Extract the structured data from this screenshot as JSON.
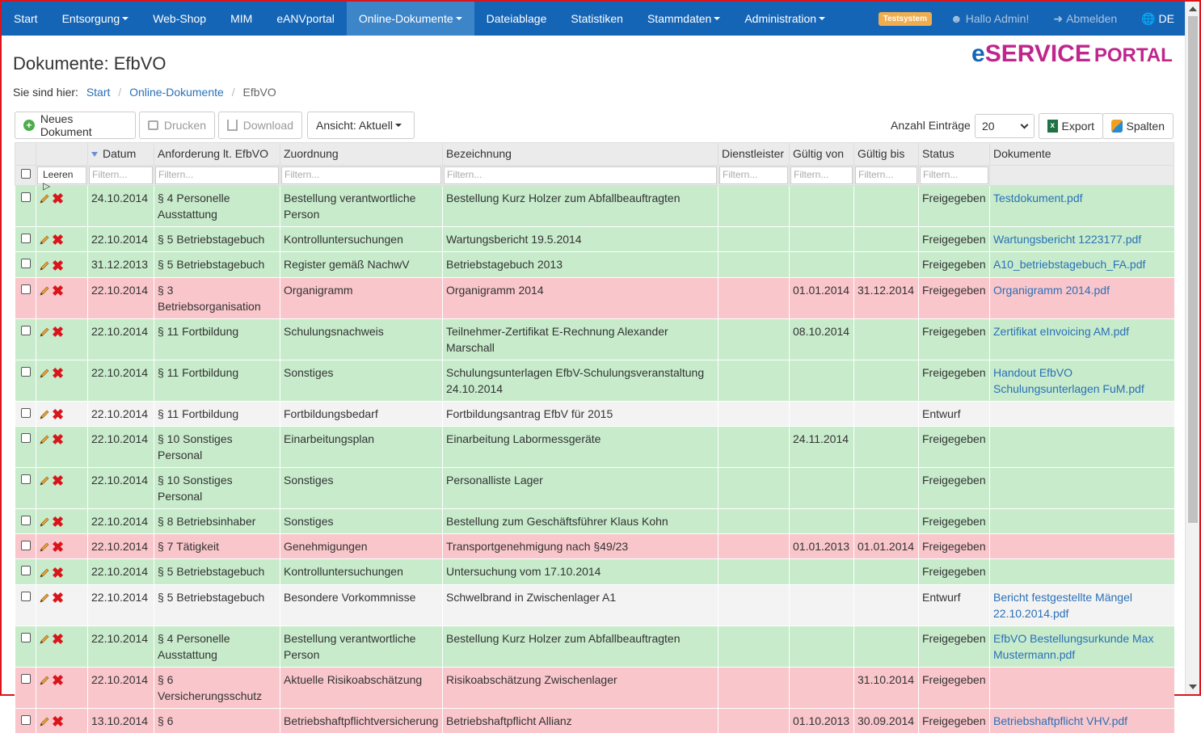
{
  "nav": {
    "items": [
      {
        "label": "Start",
        "dropdown": false,
        "active": false
      },
      {
        "label": "Entsorgung",
        "dropdown": true,
        "active": false
      },
      {
        "label": "Web-Shop",
        "dropdown": false,
        "active": false
      },
      {
        "label": "MIM",
        "dropdown": false,
        "active": false
      },
      {
        "label": "eANVportal",
        "dropdown": false,
        "active": false
      },
      {
        "label": "Online-Dokumente",
        "dropdown": true,
        "active": true
      },
      {
        "label": "Dateiablage",
        "dropdown": false,
        "active": false
      },
      {
        "label": "Statistiken",
        "dropdown": false,
        "active": false
      },
      {
        "label": "Stammdaten",
        "dropdown": true,
        "active": false
      },
      {
        "label": "Administration",
        "dropdown": true,
        "active": false
      }
    ],
    "test_badge": "Testsystem",
    "greeting": "Hallo Admin!",
    "logout": "Abmelden",
    "language": "DE"
  },
  "header": {
    "title": "Dokumente: EfbVO",
    "logo": {
      "e": "e",
      "service": "SERVICE",
      "portal": "PORTAL"
    }
  },
  "breadcrumb": {
    "prefix": "Sie sind hier:",
    "items": [
      "Start",
      "Online-Dokumente"
    ],
    "current": "EfbVO"
  },
  "toolbar": {
    "new_doc": "Neues Dokument",
    "print": "Drucken",
    "download": "Download",
    "view": "Ansicht: Aktuell",
    "count_label": "Anzahl Einträge",
    "count_value": "20",
    "export": "Export",
    "columns": "Spalten"
  },
  "table": {
    "columns": [
      "Datum",
      "Anforderung lt. EfbVO",
      "Zuordnung",
      "Bezeichnung",
      "Dienstleister",
      "Gültig von",
      "Gültig bis",
      "Status",
      "Dokumente"
    ],
    "clear_label": "Leeren",
    "filter_placeholder": "Filtern...",
    "rows": [
      {
        "color": "green",
        "datum": "24.10.2014",
        "anf": "§ 4 Personelle Ausstattung",
        "zuo": "Bestellung verantwortliche Person",
        "bez": "Bestellung Kurz Holzer zum Abfallbeauftragten",
        "dienst": "",
        "von": "",
        "bis": "",
        "status": "Freigegeben",
        "doc": "Testdokument.pdf"
      },
      {
        "color": "green",
        "datum": "22.10.2014",
        "anf": "§ 5 Betriebstagebuch",
        "zuo": "Kontrolluntersuchungen",
        "bez": "Wartungsbericht 19.5.2014",
        "dienst": "",
        "von": "",
        "bis": "",
        "status": "Freigegeben",
        "doc": "Wartungsbericht 1223177.pdf"
      },
      {
        "color": "green",
        "datum": "31.12.2013",
        "anf": "§ 5 Betriebstagebuch",
        "zuo": "Register gemäß NachwV",
        "bez": "Betriebstagebuch 2013",
        "dienst": "",
        "von": "",
        "bis": "",
        "status": "Freigegeben",
        "doc": "A10_betriebstagebuch_FA.pdf"
      },
      {
        "color": "red",
        "datum": "22.10.2014",
        "anf": "§ 3 Betriebsorganisation",
        "zuo": "Organigramm",
        "bez": "Organigramm 2014",
        "dienst": "",
        "von": "01.01.2014",
        "bis": "31.12.2014",
        "status": "Freigegeben",
        "doc": "Organigramm 2014.pdf"
      },
      {
        "color": "green",
        "datum": "22.10.2014",
        "anf": "§ 11 Fortbildung",
        "zuo": "Schulungsnachweis",
        "bez": "Teilnehmer-Zertifikat E-Rechnung Alexander Marschall",
        "dienst": "",
        "von": "08.10.2014",
        "bis": "",
        "status": "Freigegeben",
        "doc": "Zertifikat eInvoicing AM.pdf"
      },
      {
        "color": "green",
        "datum": "22.10.2014",
        "anf": "§ 11 Fortbildung",
        "zuo": "Sonstiges",
        "bez": "Schulungsunterlagen EfbV-Schulungsveranstaltung 24.10.2014",
        "dienst": "",
        "von": "",
        "bis": "",
        "status": "Freigegeben",
        "doc": "Handout EfbVO Schulungsunterlagen FuM.pdf"
      },
      {
        "color": "white",
        "datum": "22.10.2014",
        "anf": "§ 11 Fortbildung",
        "zuo": "Fortbildungsbedarf",
        "bez": "Fortbildungsantrag EfbV für 2015",
        "dienst": "",
        "von": "",
        "bis": "",
        "status": "Entwurf",
        "doc": ""
      },
      {
        "color": "green",
        "datum": "22.10.2014",
        "anf": "§ 10 Sonstiges Personal",
        "zuo": "Einarbeitungsplan",
        "bez": "Einarbeitung Labormessgeräte",
        "dienst": "",
        "von": "24.11.2014",
        "bis": "",
        "status": "Freigegeben",
        "doc": ""
      },
      {
        "color": "green",
        "datum": "22.10.2014",
        "anf": "§ 10 Sonstiges Personal",
        "zuo": "Sonstiges",
        "bez": "Personalliste Lager",
        "dienst": "",
        "von": "",
        "bis": "",
        "status": "Freigegeben",
        "doc": ""
      },
      {
        "color": "green",
        "datum": "22.10.2014",
        "anf": "§ 8 Betriebsinhaber",
        "zuo": "Sonstiges",
        "bez": "Bestellung zum Geschäftsführer Klaus Kohn",
        "dienst": "",
        "von": "",
        "bis": "",
        "status": "Freigegeben",
        "doc": ""
      },
      {
        "color": "red",
        "datum": "22.10.2014",
        "anf": "§ 7 Tätigkeit",
        "zuo": "Genehmigungen",
        "bez": "Transportgenehmigung nach §49/23",
        "dienst": "",
        "von": "01.01.2013",
        "bis": "01.01.2014",
        "status": "Freigegeben",
        "doc": ""
      },
      {
        "color": "green",
        "datum": "22.10.2014",
        "anf": "§ 5 Betriebstagebuch",
        "zuo": "Kontrolluntersuchungen",
        "bez": "Untersuchung vom 17.10.2014",
        "dienst": "",
        "von": "",
        "bis": "",
        "status": "Freigegeben",
        "doc": ""
      },
      {
        "color": "white",
        "datum": "22.10.2014",
        "anf": "§ 5 Betriebstagebuch",
        "zuo": "Besondere Vorkommnisse",
        "bez": "Schwelbrand in Zwischenlager A1",
        "dienst": "",
        "von": "",
        "bis": "",
        "status": "Entwurf",
        "doc": "Bericht festgestellte Mängel 22.10.2014.pdf"
      },
      {
        "color": "green",
        "datum": "22.10.2014",
        "anf": "§ 4 Personelle Ausstattung",
        "zuo": "Bestellung verantwortliche Person",
        "bez": "Bestellung Kurz Holzer zum Abfallbeauftragten",
        "dienst": "",
        "von": "",
        "bis": "",
        "status": "Freigegeben",
        "doc": "EfbVO Bestellungsurkunde Max Mustermann.pdf"
      },
      {
        "color": "red",
        "datum": "22.10.2014",
        "anf": "§ 6 Versicherungsschutz",
        "zuo": "Aktuelle Risikoabschätzung",
        "bez": "Risikoabschätzung Zwischenlager",
        "dienst": "",
        "von": "",
        "bis": "31.10.2014",
        "status": "Freigegeben",
        "doc": ""
      },
      {
        "color": "red",
        "datum": "13.10.2014",
        "anf": "§ 6",
        "zuo": "Betriebshaftpflichtversicherung",
        "bez": "Betriebshaftpflicht Allianz",
        "dienst": "",
        "von": "01.10.2013",
        "bis": "30.09.2014",
        "status": "Freigegeben",
        "doc": "Betriebshaftpflicht VHV.pdf"
      }
    ]
  }
}
